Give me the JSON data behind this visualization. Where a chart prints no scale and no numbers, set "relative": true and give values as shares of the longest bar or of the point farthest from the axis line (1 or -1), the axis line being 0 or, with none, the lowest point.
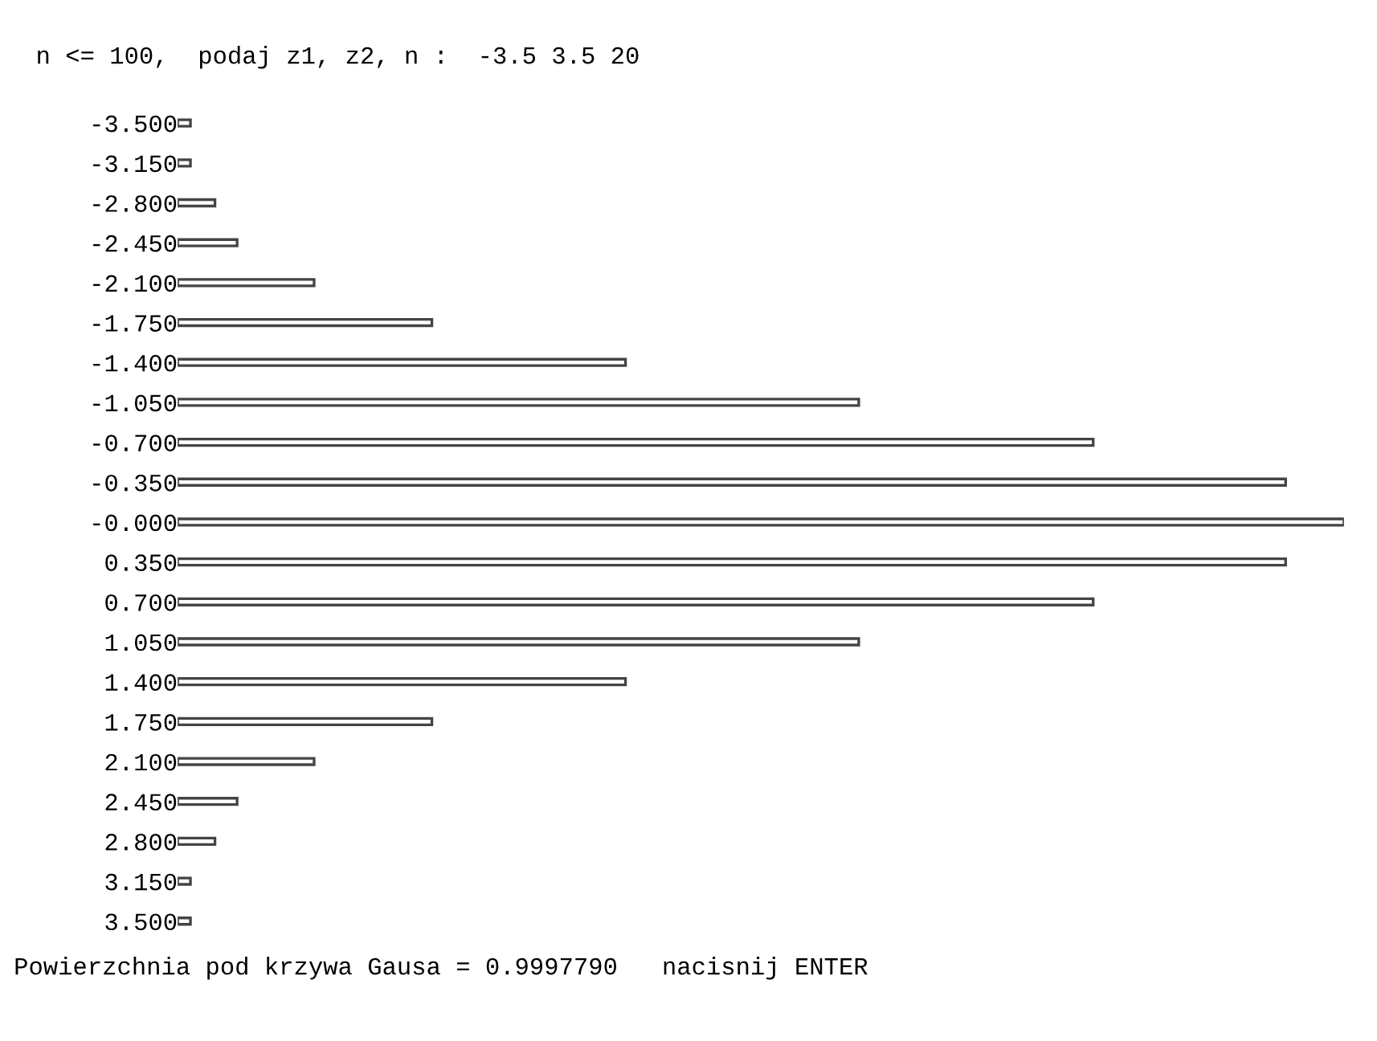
{
  "chart_data": {
    "type": "bar",
    "orientation": "horizontal",
    "relative": true,
    "title": "n <= 100,  podaj z1, z2, n :  -3.5 3.5 20",
    "categories": [
      "-3.500",
      "-3.150",
      "-2.800",
      "-2.450",
      "-2.100",
      "-1.750",
      "-1.400",
      "-1.050",
      "-0.700",
      "-0.350",
      "-0.000",
      "0.350",
      "0.700",
      "1.050",
      "1.400",
      "1.750",
      "2.100",
      "2.450",
      "2.800",
      "3.150",
      "3.500"
    ],
    "values": [
      0.011,
      0.011,
      0.032,
      0.051,
      0.117,
      0.218,
      0.384,
      0.584,
      0.785,
      0.95,
      1,
      0.95,
      0.785,
      0.584,
      0.384,
      0.218,
      0.117,
      0.051,
      0.032,
      0.011,
      0.011
    ],
    "color": "#444444",
    "annotations": [
      "Powierzchnia pod krzywa Gausa = 0.9997790   nacisnij ENTER"
    ],
    "grid": false,
    "legend": false
  }
}
